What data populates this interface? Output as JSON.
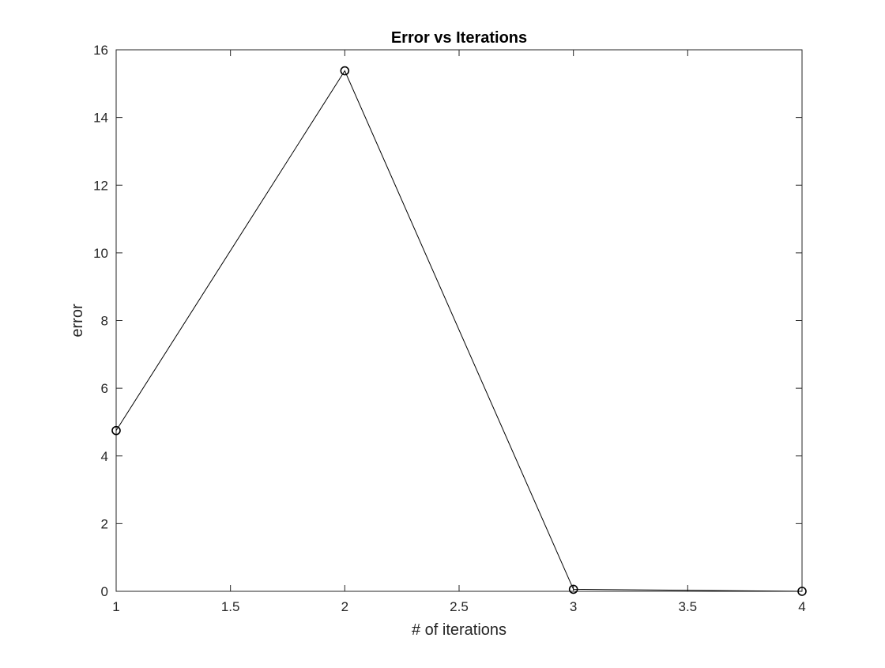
{
  "chart_data": {
    "type": "line",
    "title": "Error vs Iterations",
    "xlabel": "# of iterations",
    "ylabel": "error",
    "xlim": [
      1,
      4
    ],
    "ylim": [
      0,
      16
    ],
    "xticks": [
      1,
      1.5,
      2,
      2.5,
      3,
      3.5,
      4
    ],
    "xtick_labels": [
      "1",
      "1.5",
      "2",
      "2.5",
      "3",
      "3.5",
      "4"
    ],
    "yticks": [
      0,
      2,
      4,
      6,
      8,
      10,
      12,
      14,
      16
    ],
    "ytick_labels": [
      "0",
      "2",
      "4",
      "6",
      "8",
      "10",
      "12",
      "14",
      "16"
    ],
    "grid": false,
    "marker": "circle",
    "series": [
      {
        "x": [
          1,
          2,
          3,
          4
        ],
        "y": [
          4.75,
          15.38,
          0.06,
          0.0
        ],
        "color": "#000000"
      }
    ]
  }
}
